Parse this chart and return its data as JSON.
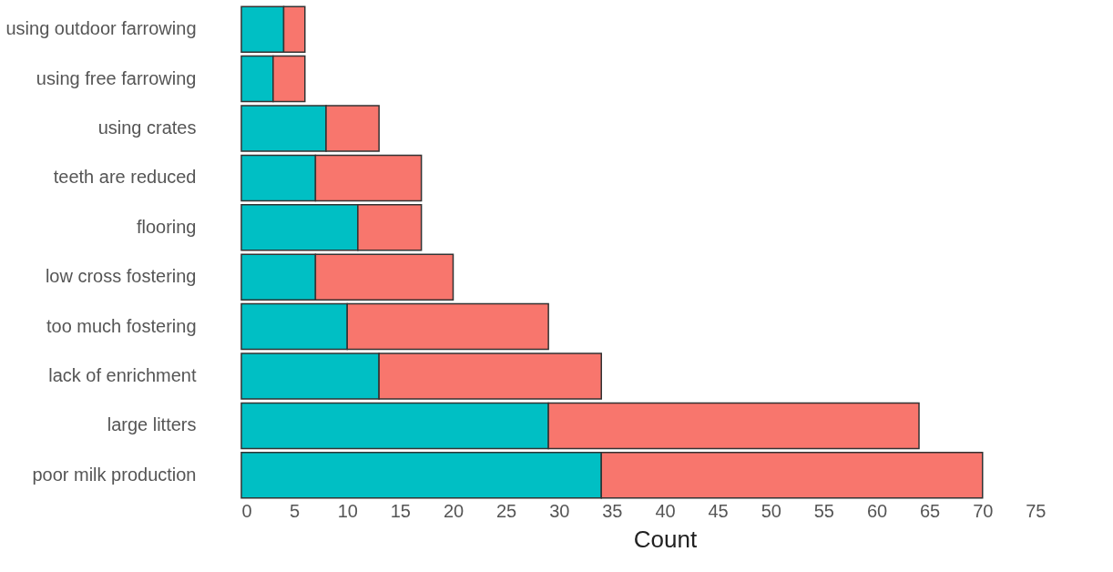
{
  "chart_data": {
    "type": "bar",
    "orientation": "horizontal",
    "stacked": true,
    "xlabel": "Count",
    "categories": [
      "using outdoor farrowing",
      "using free farrowing",
      "using crates",
      "teeth are reduced",
      "flooring",
      "low cross fostering",
      "too much fostering",
      "lack of enrichment",
      "large litters",
      "poor milk production"
    ],
    "series": [
      {
        "color": "#00bfc4",
        "values": [
          4,
          3,
          8,
          7,
          11,
          7,
          10,
          13,
          29,
          34
        ]
      },
      {
        "color": "#f8766d",
        "values": [
          2,
          3,
          5,
          10,
          6,
          13,
          19,
          21,
          35,
          36
        ]
      }
    ],
    "xlim": [
      0,
      80
    ],
    "xticks": [
      0,
      5,
      10,
      15,
      20,
      25,
      30,
      35,
      40,
      45,
      50,
      55,
      60,
      65,
      70,
      75
    ],
    "grid": false
  }
}
